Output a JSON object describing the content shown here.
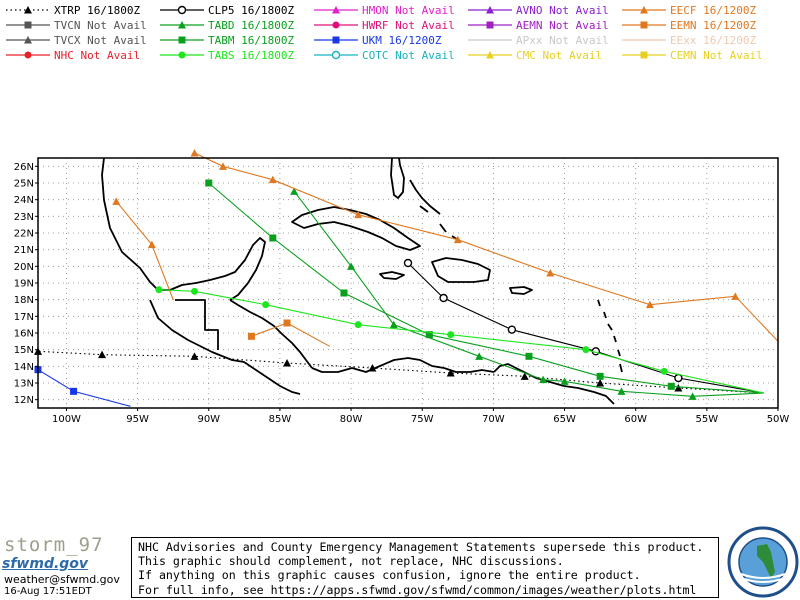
{
  "legend": {
    "columns": [
      [
        {
          "label": "XTRP 16/1800Z",
          "color": "#000000",
          "marker": "triangle",
          "dash": "dotted"
        },
        {
          "label": "TVCN Not Avail",
          "color": "#555555",
          "marker": "square",
          "dash": "solid"
        },
        {
          "label": "TVCX Not Avail",
          "color": "#555555",
          "marker": "triangle",
          "dash": "solid"
        },
        {
          "label": "NHC Not Avail",
          "color": "#e8202a",
          "marker": "circle",
          "dash": "solid"
        }
      ],
      [
        {
          "label": "CLP5 16/1800Z",
          "color": "#000000",
          "marker": "open-circle",
          "dash": "solid"
        },
        {
          "label": "TABD 16/1800Z",
          "color": "#0aa01e",
          "marker": "triangle",
          "dash": "solid"
        },
        {
          "label": "TABM 16/1800Z",
          "color": "#0aa01e",
          "marker": "square",
          "dash": "solid"
        },
        {
          "label": "TABS 16/1800Z",
          "color": "#1ee61e",
          "marker": "circle",
          "dash": "solid"
        }
      ],
      [
        {
          "label": "HMON Not Avail",
          "color": "#e020c8",
          "marker": "triangle",
          "dash": "solid"
        },
        {
          "label": "HWRF Not Avail",
          "color": "#e0107a",
          "marker": "circle",
          "dash": "solid"
        },
        {
          "label": "UKM  16/1200Z",
          "color": "#1838e6",
          "marker": "square",
          "dash": "solid"
        },
        {
          "label": "COTC Not Avail",
          "color": "#16b4c0",
          "marker": "open-circle",
          "dash": "solid"
        }
      ],
      [
        {
          "label": "AVNO Not Avail",
          "color": "#8a20d0",
          "marker": "triangle",
          "dash": "solid"
        },
        {
          "label": "AEMN Not Avail",
          "color": "#a020c0",
          "marker": "square",
          "dash": "solid"
        },
        {
          "label": "APxx  Not Avail",
          "color": "#c8c8c8",
          "marker": "none",
          "dash": "solid"
        },
        {
          "label": "CMC   Not Avail",
          "color": "#e8d020",
          "marker": "triangle",
          "dash": "solid"
        }
      ],
      [
        {
          "label": "EECF 16/1200Z",
          "color": "#e07820",
          "marker": "triangle",
          "dash": "solid"
        },
        {
          "label": "EEMN 16/1200Z",
          "color": "#e07820",
          "marker": "square",
          "dash": "solid"
        },
        {
          "label": "EExx  16/1200Z",
          "color": "#f0c8b0",
          "marker": "none",
          "dash": "solid"
        },
        {
          "label": "CEMN Not Avail",
          "color": "#e8d020",
          "marker": "square",
          "dash": "solid"
        }
      ]
    ]
  },
  "map": {
    "lon_range": [
      -102,
      -50
    ],
    "lat_range": [
      11.5,
      26.5
    ],
    "lat_labels": [
      "26N",
      "25N",
      "24N",
      "23N",
      "22N",
      "21N",
      "20N",
      "19N",
      "18N",
      "17N",
      "16N",
      "15N",
      "14N",
      "13N",
      "12N"
    ],
    "lon_labels": [
      "100W",
      "95W",
      "90W",
      "85W",
      "80W",
      "75W",
      "70W",
      "65W",
      "60W",
      "55W",
      "50W"
    ],
    "colors": {
      "grid": "#888888",
      "land": "#000000"
    }
  },
  "tracks": [
    {
      "model": "XTRP",
      "color": "#000000",
      "marker": "triangle",
      "dash": "dotted",
      "points": [
        [
          -51.0,
          12.4
        ],
        [
          -57.0,
          12.7
        ],
        [
          -62.5,
          13.0
        ],
        [
          -67.8,
          13.4
        ],
        [
          -73.0,
          13.6
        ],
        [
          -78.5,
          13.9
        ],
        [
          -84.5,
          14.2
        ],
        [
          -91.0,
          14.6
        ],
        [
          -97.5,
          14.7
        ],
        [
          -102.0,
          14.9
        ]
      ]
    },
    {
      "model": "CLP5",
      "color": "#000000",
      "marker": "open-circle",
      "dash": "solid",
      "points": [
        [
          -51.0,
          12.4
        ],
        [
          -57.0,
          13.3
        ],
        [
          -62.8,
          14.9
        ],
        [
          -68.7,
          16.2
        ],
        [
          -73.5,
          18.1
        ],
        [
          -76.0,
          20.2
        ]
      ]
    },
    {
      "model": "TABD",
      "color": "#0aa01e",
      "marker": "triangle",
      "dash": "solid",
      "points": [
        [
          -51.0,
          12.4
        ],
        [
          -56.0,
          12.2
        ],
        [
          -61.0,
          12.5
        ],
        [
          -65.0,
          13.1
        ],
        [
          -66.5,
          13.2
        ],
        [
          -71.0,
          14.6
        ],
        [
          -77.0,
          16.5
        ],
        [
          -80.0,
          20.0
        ],
        [
          -84.0,
          24.5
        ]
      ]
    },
    {
      "model": "TABM",
      "color": "#0aa01e",
      "marker": "square",
      "dash": "solid",
      "points": [
        [
          -51.0,
          12.4
        ],
        [
          -57.5,
          12.8
        ],
        [
          -62.5,
          13.4
        ],
        [
          -67.5,
          14.6
        ],
        [
          -74.5,
          15.9
        ],
        [
          -80.5,
          18.4
        ],
        [
          -85.5,
          21.7
        ],
        [
          -90.0,
          25.0
        ]
      ]
    },
    {
      "model": "TABS",
      "color": "#1ee61e",
      "marker": "circle",
      "dash": "solid",
      "points": [
        [
          -51.0,
          12.4
        ],
        [
          -58.0,
          13.7
        ],
        [
          -63.5,
          15.0
        ],
        [
          -73.0,
          15.9
        ],
        [
          -79.5,
          16.5
        ],
        [
          -86.0,
          17.7
        ],
        [
          -91.0,
          18.5
        ],
        [
          -93.5,
          18.6
        ]
      ]
    },
    {
      "model": "UKM",
      "color": "#1838e6",
      "marker": "square",
      "dash": "solid",
      "points": [
        [
          -95.5,
          11.6
        ],
        [
          -99.5,
          12.5
        ],
        [
          -102.0,
          13.8
        ]
      ]
    },
    {
      "model": "EECF",
      "color": "#e07820",
      "marker": "triangle",
      "dash": "solid",
      "points": [
        [
          -50.0,
          15.5
        ],
        [
          -53.0,
          18.2
        ],
        [
          -59.0,
          17.7
        ],
        [
          -66.0,
          19.6
        ],
        [
          -72.5,
          21.6
        ],
        [
          -79.5,
          23.1
        ],
        [
          -85.5,
          25.2
        ],
        [
          -89.0,
          26.0
        ],
        [
          -91.0,
          26.8
        ]
      ]
    },
    {
      "model": "EECF-WEST",
      "color": "#e07820",
      "marker": "triangle",
      "dash": "solid",
      "points": [
        [
          -92.5,
          18.0
        ],
        [
          -94.0,
          21.3
        ],
        [
          -96.5,
          23.9
        ]
      ]
    },
    {
      "model": "EEMN",
      "color": "#e07820",
      "marker": "square",
      "dash": "solid",
      "points": [
        [
          -81.5,
          15.2
        ],
        [
          -84.5,
          16.6
        ],
        [
          -87.0,
          15.8
        ]
      ]
    }
  ],
  "footer": {
    "storm_name": "storm_97",
    "site_logo": "sfwmd.gov",
    "email": "weather@sfwmd.gov",
    "timestamp": "16-Aug 17:51EDT",
    "disclaimer_lines": [
      "NHC Advisories and County Emergency Management Statements supersede this product.",
      "This graphic should complement, not replace, NHC discussions.",
      "If anything on this graphic causes confusion, ignore the entire product.",
      "For full info, see  https://apps.sfwmd.gov/sfwmd/common/images/weather/plots.html"
    ]
  },
  "seal": {
    "name": "south-florida-water-management-district-seal",
    "text_top": "SOUTH FLORIDA WATER MANAGEMENT DISTRICT"
  }
}
